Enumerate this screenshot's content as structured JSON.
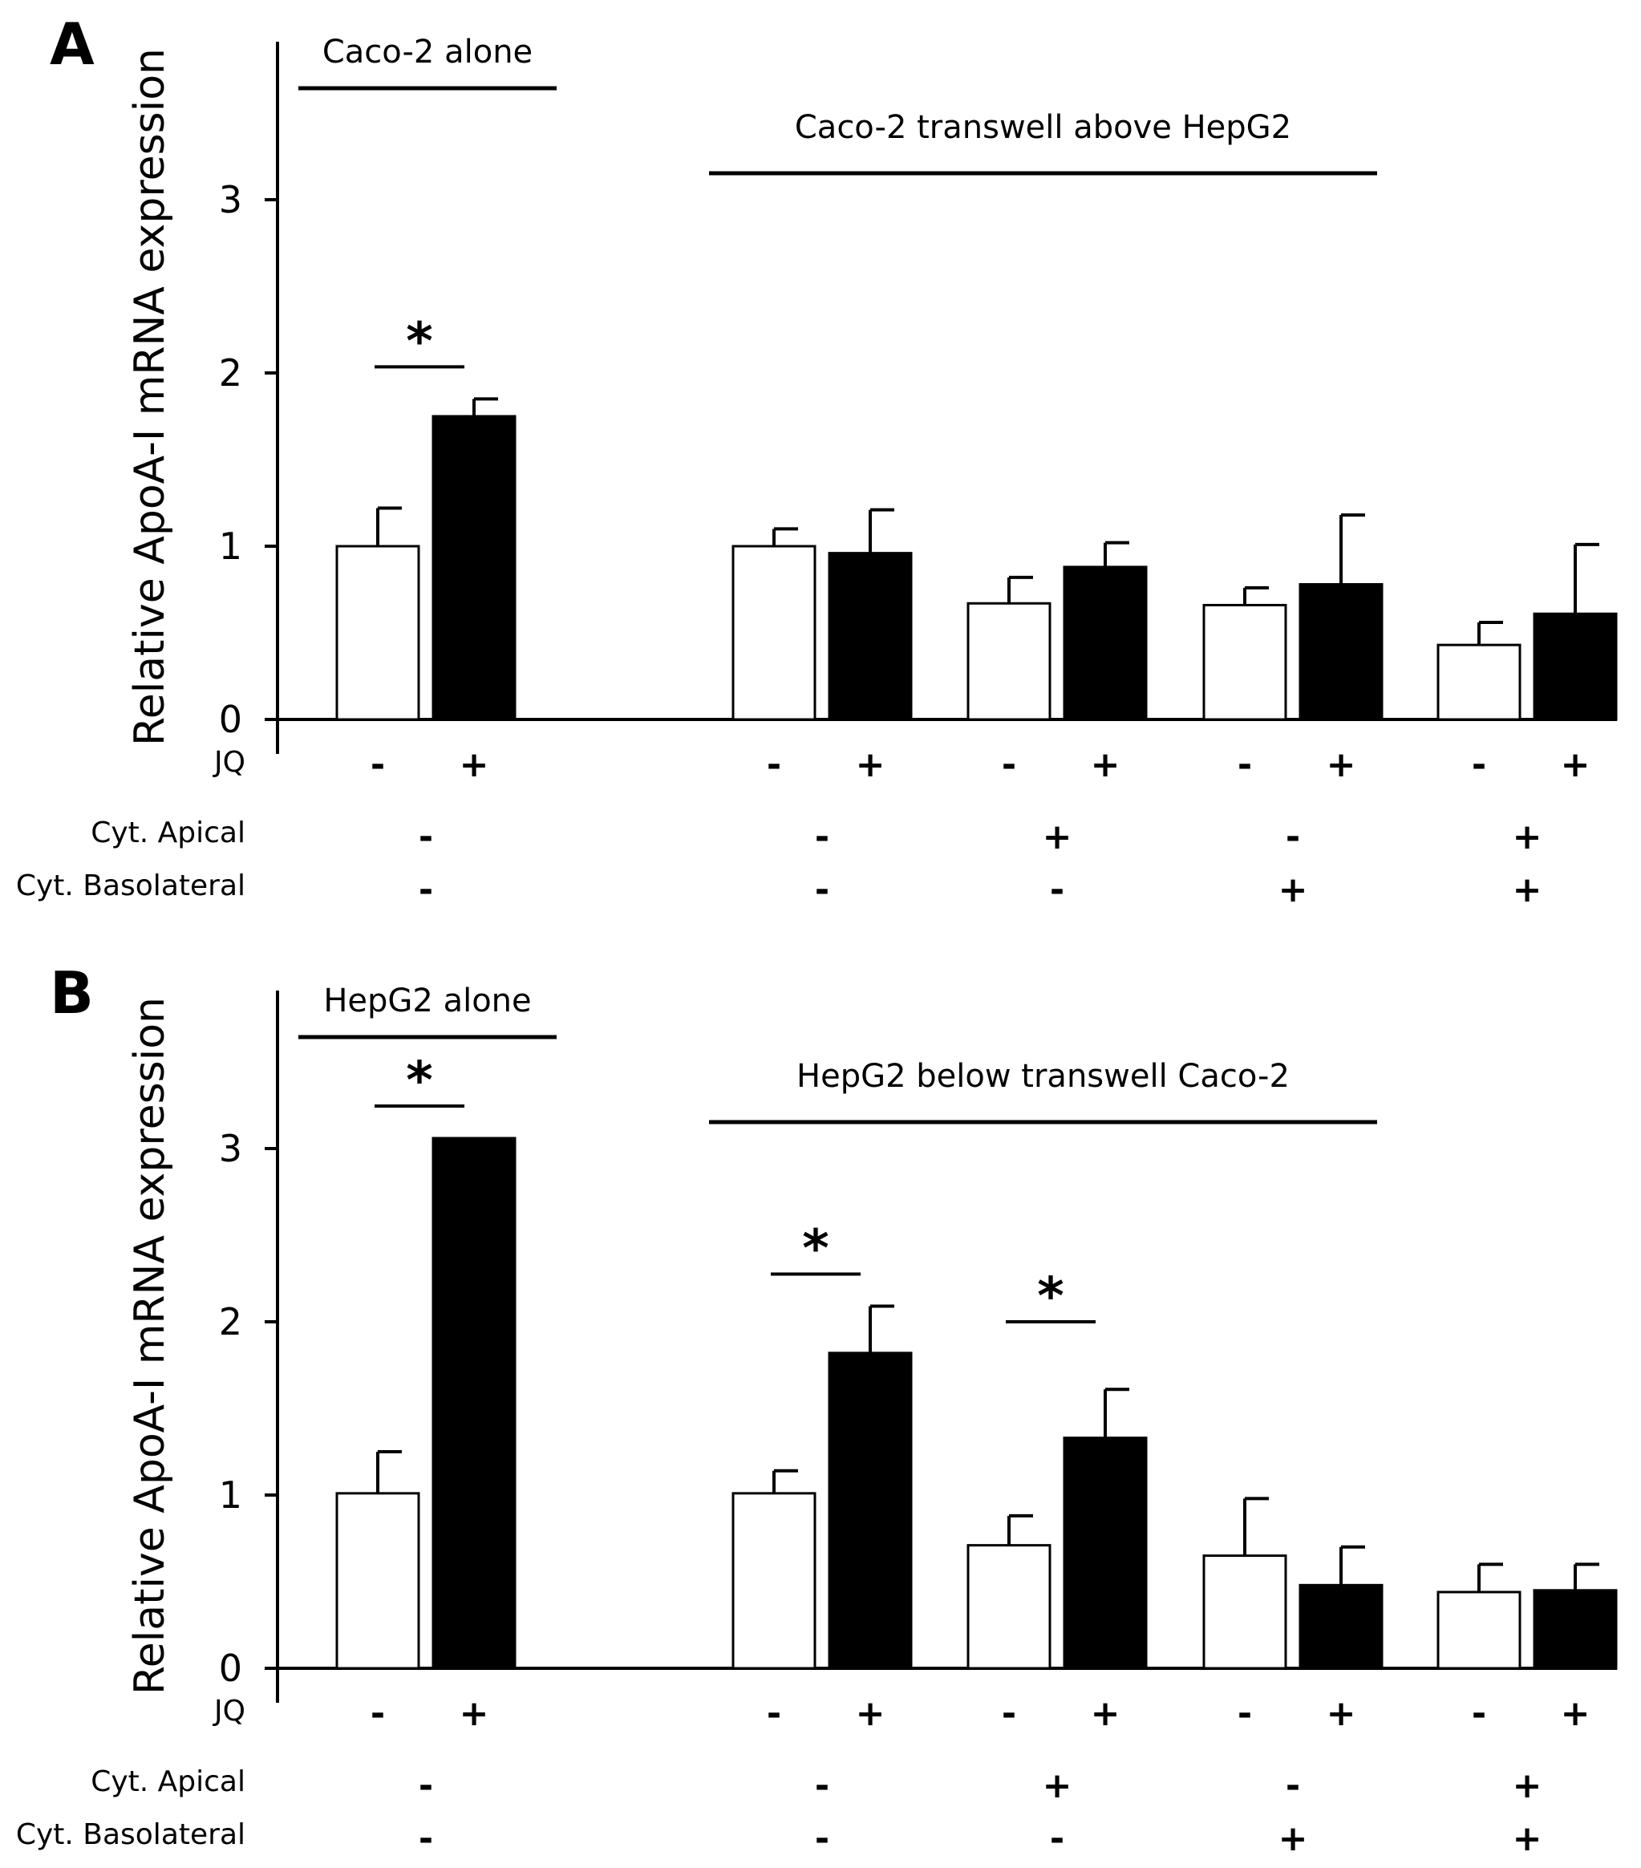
{
  "chart_data": [
    {
      "type": "bar",
      "panel": "A",
      "ylabel": "Relative ApoA-I mRNA expression",
      "ylim": [
        0,
        4
      ],
      "yticks": [
        "0",
        "1",
        "2",
        "3"
      ],
      "groups": [
        {
          "label": "Caco-2 alone",
          "conditions": [
            0
          ]
        },
        {
          "label": "Caco-2 transwell above HepG2",
          "conditions": [
            1,
            2,
            3,
            4
          ]
        }
      ],
      "series": [
        {
          "name": "JQ -",
          "fill": "#ffffff",
          "values": [
            1.0,
            1.0,
            0.67,
            0.66,
            0.43
          ],
          "errors": [
            0.22,
            0.1,
            0.15,
            0.1,
            0.13
          ]
        },
        {
          "name": "JQ +",
          "fill": "#000000",
          "values": [
            1.75,
            0.96,
            0.88,
            0.78,
            0.61
          ],
          "errors": [
            0.1,
            0.25,
            0.14,
            0.4,
            0.4
          ]
        }
      ],
      "significance": [
        {
          "condition": 0,
          "label": "*"
        }
      ],
      "rows": {
        "jq": {
          "label": "JQ",
          "values": [
            "-",
            "+",
            "-",
            "+",
            "-",
            "+",
            "-",
            "+",
            "-",
            "+"
          ]
        },
        "cyt_apical": {
          "label": "Cyt. Apical",
          "values": [
            "-",
            "-",
            "+",
            "-",
            "+"
          ]
        },
        "cyt_basolateral": {
          "label": "Cyt. Basolateral",
          "values": [
            "-",
            "-",
            "-",
            "+",
            "+"
          ]
        }
      }
    },
    {
      "type": "bar",
      "panel": "B",
      "ylabel": "Relative ApoA-I mRNA expression",
      "ylim": [
        0,
        4
      ],
      "yticks": [
        "0",
        "1",
        "2",
        "3"
      ],
      "groups": [
        {
          "label": "HepG2 alone",
          "conditions": [
            0
          ]
        },
        {
          "label": "HepG2 below transwell Caco-2",
          "conditions": [
            1,
            2,
            3,
            4
          ]
        }
      ],
      "series": [
        {
          "name": "JQ -",
          "fill": "#ffffff",
          "values": [
            1.01,
            1.01,
            0.71,
            0.65,
            0.44
          ],
          "errors": [
            0.24,
            0.13,
            0.17,
            0.33,
            0.16
          ]
        },
        {
          "name": "JQ +",
          "fill": "#000000",
          "values": [
            3.06,
            1.82,
            1.33,
            0.48,
            0.45
          ],
          "errors": [
            0.0,
            0.27,
            0.28,
            0.22,
            0.15
          ]
        }
      ],
      "significance": [
        {
          "condition": 0,
          "label": "*"
        },
        {
          "condition": 1,
          "label": "*"
        },
        {
          "condition": 2,
          "label": "*"
        }
      ],
      "rows": {
        "jq": {
          "label": "JQ",
          "values": [
            "-",
            "+",
            "-",
            "+",
            "-",
            "+",
            "-",
            "+",
            "-",
            "+"
          ]
        },
        "cyt_apical": {
          "label": "Cyt. Apical",
          "values": [
            "-",
            "-",
            "+",
            "-",
            "+"
          ]
        },
        "cyt_basolateral": {
          "label": "Cyt. Basolateral",
          "values": [
            "-",
            "-",
            "-",
            "+",
            "+"
          ]
        }
      }
    }
  ]
}
